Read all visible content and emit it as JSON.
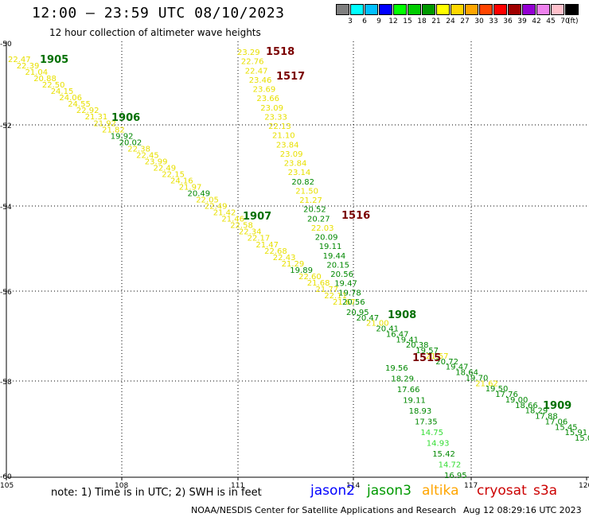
{
  "title": "12:00 – 23:59 UTC 08/10/2023",
  "subtitle": "12 hour collection of altimeter wave heights",
  "scale": {
    "labels": [
      "3",
      "6",
      "9",
      "12",
      "15",
      "18",
      "21",
      "24",
      "27",
      "30",
      "33",
      "36",
      "39",
      "42",
      "45",
      "70"
    ],
    "unit": "(ft)",
    "colors": [
      "#7f7f7f",
      "#00ffff",
      "#00bfff",
      "#0000ff",
      "#00ff00",
      "#00cc00",
      "#009900",
      "#ffff00",
      "#ffd700",
      "#ffa500",
      "#ff4500",
      "#ff0000",
      "#a00000",
      "#9400d3",
      "#ee82ee",
      "#ffc0cb",
      "#000000"
    ]
  },
  "map": {
    "x_labels": [
      "105",
      "108",
      "111",
      "114",
      "117",
      "120"
    ],
    "y_labels": [
      "-50",
      "-52",
      "-54",
      "-56",
      "-58",
      "-60"
    ],
    "grid_color": "#000000",
    "tracks": [
      {
        "name": "1905",
        "label_color": "#007000",
        "points": [
          {
            "t": "22.47",
            "c": "#e8e000"
          },
          {
            "t": "22.39",
            "c": "#e8e000"
          },
          {
            "t": "21.04",
            "c": "#e8e000"
          },
          {
            "t": "20.88",
            "c": "#e8e000"
          },
          {
            "t": "22.50",
            "c": "#e8e000"
          },
          {
            "t": "24.15",
            "c": "#e8e000"
          },
          {
            "t": "24.06",
            "c": "#e8e000"
          },
          {
            "t": "24.55",
            "c": "#e8e000"
          },
          {
            "t": "22.92",
            "c": "#e8e000"
          },
          {
            "t": "21.31",
            "c": "#e8e000"
          },
          {
            "t": "21.92",
            "c": "#e8e000"
          },
          {
            "t": "21.82",
            "c": "#e8e000"
          },
          {
            "t": "19.92",
            "c": "#008800"
          },
          {
            "t": "20.02",
            "c": "#008800"
          },
          {
            "t": "22.38",
            "c": "#e8e000"
          },
          {
            "t": "22.45",
            "c": "#e8e000"
          },
          {
            "t": "23.99",
            "c": "#e8e000"
          },
          {
            "t": "22.49",
            "c": "#e8e000"
          },
          {
            "t": "22.15",
            "c": "#e8e000"
          },
          {
            "t": "24.16",
            "c": "#e8e000"
          },
          {
            "t": "21.97",
            "c": "#e8e000"
          },
          {
            "t": "20.49",
            "c": "#008800"
          },
          {
            "t": "22.05",
            "c": "#e8e000"
          },
          {
            "t": "22.49",
            "c": "#e8e000"
          },
          {
            "t": "21.42",
            "c": "#e8e000"
          },
          {
            "t": "21.46",
            "c": "#e8e000"
          },
          {
            "t": "22.58",
            "c": "#e8e000"
          },
          {
            "t": "22.34",
            "c": "#e8e000"
          },
          {
            "t": "22.17",
            "c": "#e8e000"
          },
          {
            "t": "21.47",
            "c": "#e8e000"
          },
          {
            "t": "22.68",
            "c": "#e8e000"
          },
          {
            "t": "22.43",
            "c": "#e8e000"
          },
          {
            "t": "21.29",
            "c": "#e8e000"
          },
          {
            "t": "19.89",
            "c": "#008800"
          },
          {
            "t": "22.60",
            "c": "#e8e000"
          },
          {
            "t": "21.68",
            "c": "#e8e000"
          },
          {
            "t": "21.77",
            "c": "#e8e000"
          },
          {
            "t": "22.11",
            "c": "#e8e000"
          },
          {
            "t": "21.67",
            "c": "#e8e000"
          }
        ]
      },
      {
        "name": "1906",
        "label_color": "#007000"
      },
      {
        "name": "1907",
        "label_color": "#007000"
      },
      {
        "name": "1908",
        "label_color": "#007000",
        "points": [
          {
            "t": "20.95",
            "c": "#008800"
          },
          {
            "t": "20.47",
            "c": "#008800"
          },
          {
            "t": "21.00",
            "c": "#e8e000"
          },
          {
            "t": "20.41",
            "c": "#008800"
          },
          {
            "t": "16.47",
            "c": "#008800"
          },
          {
            "t": "19.41",
            "c": "#008800"
          },
          {
            "t": "20.38",
            "c": "#008800"
          },
          {
            "t": "19.57",
            "c": "#008800"
          },
          {
            "t": "21.57",
            "c": "#e8e000"
          },
          {
            "t": "20.72",
            "c": "#008800"
          },
          {
            "t": "19.47",
            "c": "#008800"
          },
          {
            "t": "18.64",
            "c": "#008800"
          },
          {
            "t": "19.70",
            "c": "#008800"
          },
          {
            "t": "21.62",
            "c": "#e8e000"
          },
          {
            "t": "19.50",
            "c": "#008800"
          },
          {
            "t": "17.76",
            "c": "#008800"
          },
          {
            "t": "19.00",
            "c": "#008800"
          },
          {
            "t": "18.66",
            "c": "#008800"
          },
          {
            "t": "18.29",
            "c": "#008800"
          },
          {
            "t": "17.88",
            "c": "#008800"
          },
          {
            "t": "17.06",
            "c": "#008800"
          },
          {
            "t": "15.45",
            "c": "#008800"
          },
          {
            "t": "15.91",
            "c": "#008800"
          },
          {
            "t": "15.0",
            "c": "#008800"
          }
        ]
      },
      {
        "name": "1909",
        "label_color": "#007000"
      },
      {
        "name": "1518",
        "label_color": "#7a0000",
        "points": [
          {
            "t": "23.29",
            "c": "#e8e000"
          },
          {
            "t": "22.76",
            "c": "#e8e000"
          },
          {
            "t": "22.47",
            "c": "#e8e000"
          },
          {
            "t": "23.46",
            "c": "#e8e000"
          },
          {
            "t": "23.69",
            "c": "#e8e000"
          },
          {
            "t": "23.66",
            "c": "#e8e000"
          },
          {
            "t": "23.09",
            "c": "#e8e000"
          },
          {
            "t": "23.33",
            "c": "#e8e000"
          },
          {
            "t": "22.13",
            "c": "#e8e000"
          },
          {
            "t": "21.10",
            "c": "#e8e000"
          },
          {
            "t": "23.84",
            "c": "#e8e000"
          },
          {
            "t": "23.09",
            "c": "#e8e000"
          },
          {
            "t": "23.84",
            "c": "#e8e000"
          },
          {
            "t": "23.14",
            "c": "#e8e000"
          },
          {
            "t": "20.82",
            "c": "#008800"
          },
          {
            "t": "21.50",
            "c": "#e8e000"
          },
          {
            "t": "21.27",
            "c": "#e8e000"
          },
          {
            "t": "20.52",
            "c": "#008800"
          },
          {
            "t": "20.27",
            "c": "#008800"
          },
          {
            "t": "22.03",
            "c": "#e8e000"
          },
          {
            "t": "20.09",
            "c": "#008800"
          },
          {
            "t": "19.11",
            "c": "#008800"
          },
          {
            "t": "19.44",
            "c": "#008800"
          },
          {
            "t": "20.15",
            "c": "#008800"
          },
          {
            "t": "20.56",
            "c": "#008800"
          },
          {
            "t": "19.47",
            "c": "#008800"
          },
          {
            "t": "19.78",
            "c": "#008800"
          },
          {
            "t": "20.56",
            "c": "#008800"
          }
        ]
      },
      {
        "name": "1517",
        "label_color": "#7a0000"
      },
      {
        "name": "1516",
        "label_color": "#7a0000"
      },
      {
        "name": "1515",
        "label_color": "#7a0000",
        "points": [
          {
            "t": "19.56",
            "c": "#008800"
          },
          {
            "t": "18.29",
            "c": "#008800"
          },
          {
            "t": "17.66",
            "c": "#008800"
          },
          {
            "t": "19.11",
            "c": "#008800"
          },
          {
            "t": "18.93",
            "c": "#008800"
          },
          {
            "t": "17.35",
            "c": "#008800"
          },
          {
            "t": "14.75",
            "c": "#33dd33"
          },
          {
            "t": "14.93",
            "c": "#33dd33"
          },
          {
            "t": "15.42",
            "c": "#008800"
          },
          {
            "t": "14.72",
            "c": "#33dd33"
          },
          {
            "t": "16.95",
            "c": "#008800"
          }
        ]
      }
    ]
  },
  "note": "note:  1) Time is in UTC; 2) SWH is in feet",
  "satellites": [
    {
      "name": "jason2",
      "color": "#0000ff"
    },
    {
      "name": "jason3",
      "color": "#009900"
    },
    {
      "name": "altika",
      "color": "#ffa500"
    },
    {
      "name": "cryosat",
      "color": "#cc0000"
    },
    {
      "name": "s3a",
      "color": "#cc0000"
    }
  ],
  "footer": {
    "source": "NOAA/NESDIS Center for Satellite Applications and Research",
    "timestamp": "Aug 12 08:29:16 UTC 2023"
  }
}
